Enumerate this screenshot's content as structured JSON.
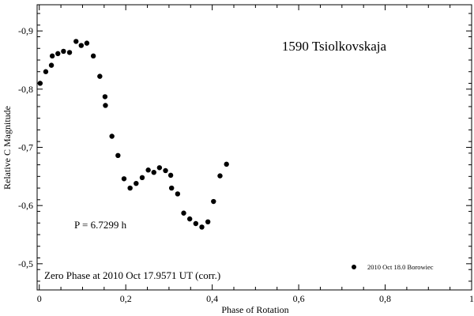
{
  "chart_data": {
    "type": "scatter",
    "title": "1590 Tsiolkovskaja",
    "xlabel": "Phase of Rotation",
    "ylabel": "Relative C Magnitude",
    "xlim": [
      -0.005,
      1.0
    ],
    "ylim": [
      -0.455,
      -0.945
    ],
    "y_inverted": true,
    "grid": false,
    "x_ticks": [
      0,
      0.2,
      0.4,
      0.6,
      0.8,
      1
    ],
    "x_tick_labels": [
      "0",
      "0,2",
      "0,4",
      "0,6",
      "0,8",
      "1"
    ],
    "y_ticks": [
      -0.9,
      -0.8,
      -0.7,
      -0.6,
      -0.5
    ],
    "y_tick_labels": [
      "-0,9",
      "-0,8",
      "-0,7",
      "-0,6",
      "-0,5"
    ],
    "annotations": {
      "period": "P = 6.7299 h",
      "zero_phase": "Zero Phase at 2010 Oct 17.9571 UT (corr.)"
    },
    "legend": {
      "placement": "bottom-right",
      "entries": [
        "2010 Oct 18.0 Borowiec"
      ]
    },
    "series": [
      {
        "name": "2010 Oct 18.0 Borowiec",
        "color": "#000000",
        "x": [
          0.002,
          0.015,
          0.028,
          0.03,
          0.043,
          0.056,
          0.07,
          0.085,
          0.097,
          0.11,
          0.125,
          0.14,
          0.152,
          0.153,
          0.168,
          0.182,
          0.196,
          0.21,
          0.224,
          0.238,
          0.252,
          0.265,
          0.278,
          0.292,
          0.304,
          0.306,
          0.32,
          0.334,
          0.348,
          0.362,
          0.376,
          0.39,
          0.403,
          0.418,
          0.433
        ],
        "y": [
          -0.81,
          -0.83,
          -0.841,
          -0.857,
          -0.861,
          -0.865,
          -0.863,
          -0.882,
          -0.875,
          -0.879,
          -0.857,
          -0.822,
          -0.787,
          -0.772,
          -0.719,
          -0.686,
          -0.646,
          -0.63,
          -0.638,
          -0.648,
          -0.661,
          -0.657,
          -0.665,
          -0.66,
          -0.652,
          -0.63,
          -0.62,
          -0.587,
          -0.577,
          -0.569,
          -0.563,
          -0.572,
          -0.607,
          -0.651,
          -0.671
        ]
      }
    ]
  }
}
